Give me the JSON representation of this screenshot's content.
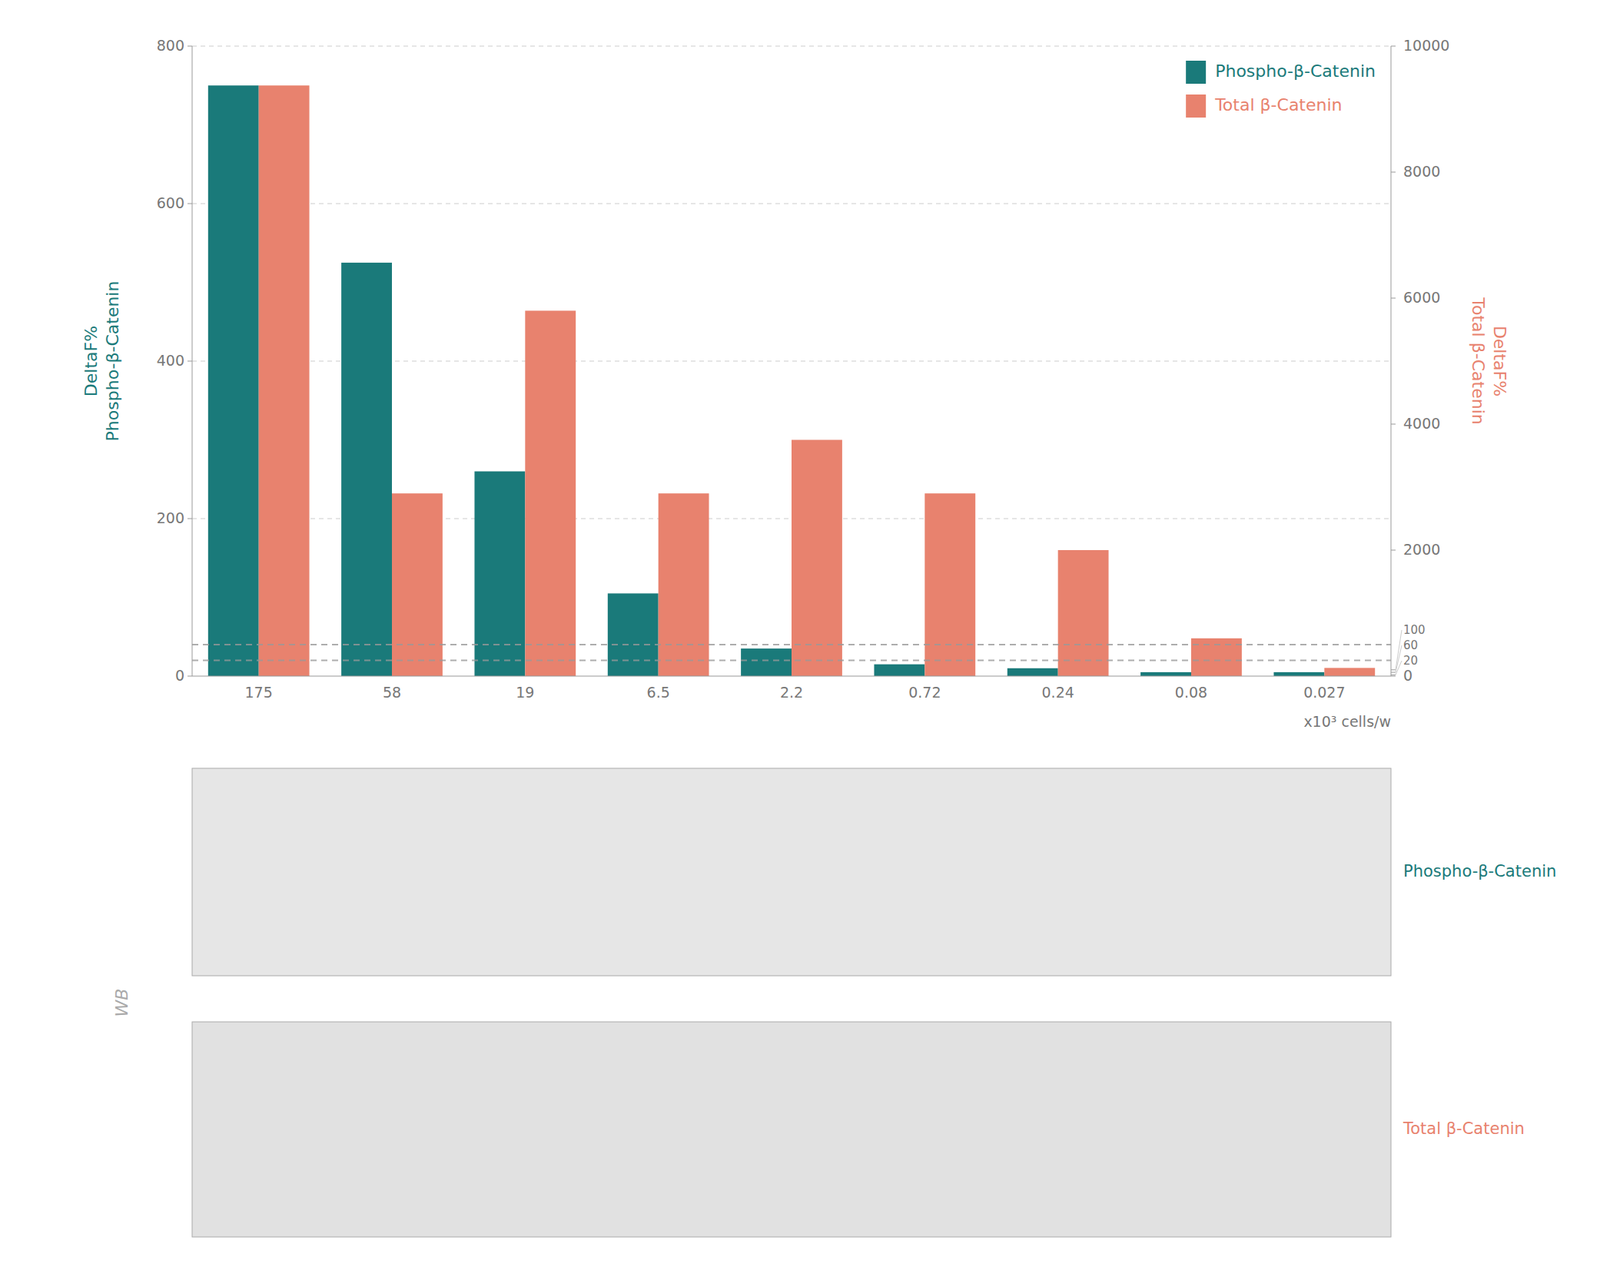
{
  "chart_data": {
    "type": "bar",
    "categories": [
      "175",
      "58",
      "19",
      "6.5",
      "2.2",
      "0.72",
      "0.24",
      "0.08",
      "0.027"
    ],
    "series": [
      {
        "name": "Phospho-β-Catenin",
        "color": "#1a7a7a",
        "values": [
          750,
          525,
          260,
          105,
          35,
          15,
          10,
          5,
          5
        ]
      },
      {
        "name": "Total β-Catenin",
        "color": "#e8826e",
        "axis": "y2",
        "values": [
          9375,
          2900,
          5800,
          2900,
          3750,
          2900,
          2000,
          600,
          130
        ]
      }
    ],
    "xlabel": "x10³ cells/w",
    "ylabel": "DeltaF%\nPhospho-β-Catenin",
    "y2label": "DeltaF%\nTotal β-Catenin",
    "ylim": [
      0,
      800
    ],
    "yticks": [
      0,
      200,
      400,
      600,
      800
    ],
    "y2lim": [
      0,
      10000
    ],
    "y2ticks": [
      0,
      20,
      60,
      100,
      2000,
      4000,
      6000,
      8000,
      10000
    ],
    "reference_lines": [
      40,
      20
    ],
    "grid": true,
    "legend": "upper right",
    "annotations": [
      {
        "text": "WB",
        "color": "#aaaaaa"
      },
      {
        "text": "Phospho-β-Catenin",
        "color": "#1a7a7a"
      },
      {
        "text": "Total β-Catenin",
        "color": "#e8826e"
      }
    ]
  }
}
